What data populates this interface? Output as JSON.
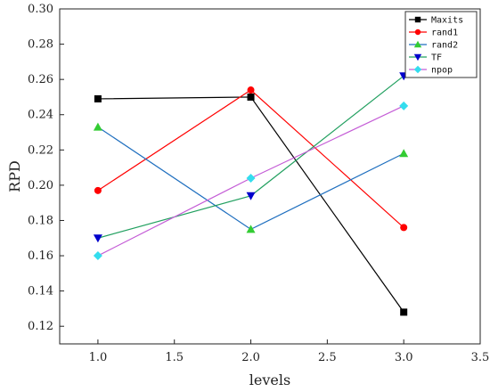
{
  "chart_data": {
    "type": "line",
    "xlabel": "levels",
    "ylabel": "RPD",
    "xlim": [
      0.75,
      3.5
    ],
    "ylim": [
      0.11,
      0.3
    ],
    "xticks": [
      "1.0",
      "1.5",
      "2.0",
      "2.5",
      "3.0",
      "3.5"
    ],
    "xtick_values": [
      1.0,
      1.5,
      2.0,
      2.5,
      3.0,
      3.5
    ],
    "yticks": [
      "0.12",
      "0.14",
      "0.16",
      "0.18",
      "0.20",
      "0.22",
      "0.24",
      "0.26",
      "0.28",
      "0.30"
    ],
    "ytick_values": [
      0.12,
      0.14,
      0.16,
      0.18,
      0.2,
      0.22,
      0.24,
      0.26,
      0.28,
      0.3
    ],
    "x": [
      1.0,
      2.0,
      3.0
    ],
    "grid": false,
    "legend_position": "top-right",
    "series": [
      {
        "name": "Maxits",
        "values": [
          0.249,
          0.25,
          0.128
        ],
        "color": "#000000",
        "marker": "square"
      },
      {
        "name": "rand1",
        "values": [
          0.197,
          0.254,
          0.176
        ],
        "color": "#ff0000",
        "marker": "circle"
      },
      {
        "name": "rand2",
        "values": [
          0.233,
          0.175,
          0.218
        ],
        "color": "#1f6fbf",
        "marker_color": "#33cc33",
        "marker": "triangle-up"
      },
      {
        "name": "TF",
        "values": [
          0.17,
          0.194,
          0.262
        ],
        "color": "#22a060",
        "marker_color": "#0000cc",
        "marker": "triangle-down"
      },
      {
        "name": "npop",
        "values": [
          0.16,
          0.204,
          0.245
        ],
        "color": "#c45cd6",
        "marker_color": "#33ddee",
        "marker": "diamond"
      }
    ]
  }
}
